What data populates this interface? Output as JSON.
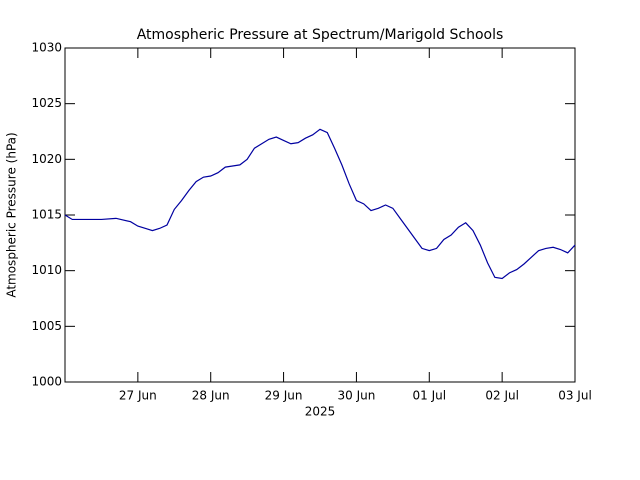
{
  "chart_data": {
    "type": "line",
    "title": "Atmospheric Pressure at Spectrum/Marigold Schools",
    "ylabel": "Atmospheric Pressure (hPa)",
    "xlabel": "2025",
    "x": [
      26.0,
      26.1,
      26.25,
      26.5,
      26.7,
      26.9,
      27.0,
      27.1,
      27.2,
      27.3,
      27.4,
      27.5,
      27.6,
      27.7,
      27.8,
      27.9,
      28.0,
      28.1,
      28.2,
      28.3,
      28.4,
      28.5,
      28.6,
      28.7,
      28.8,
      28.9,
      29.0,
      29.1,
      29.2,
      29.3,
      29.4,
      29.5,
      29.6,
      29.7,
      29.8,
      29.9,
      30.0,
      30.1,
      30.2,
      30.3,
      30.4,
      30.5,
      30.6,
      30.7,
      30.8,
      30.9,
      31.0,
      31.1,
      31.2,
      31.3,
      31.4,
      31.5,
      31.6,
      31.7,
      31.8,
      31.9,
      32.0,
      32.1,
      32.2,
      32.3,
      32.4,
      32.5,
      32.6,
      32.7,
      32.8,
      32.9,
      33.0
    ],
    "series": [
      {
        "name": "Pressure",
        "color": "#0000a0",
        "values": [
          1015.0,
          1014.6,
          1014.6,
          1014.6,
          1014.7,
          1014.4,
          1014.0,
          1013.8,
          1013.6,
          1013.8,
          1014.1,
          1015.5,
          1016.3,
          1017.2,
          1018.0,
          1018.4,
          1018.5,
          1018.8,
          1019.3,
          1019.4,
          1019.5,
          1020.0,
          1021.0,
          1021.4,
          1021.8,
          1022.0,
          1021.7,
          1021.4,
          1021.5,
          1021.9,
          1022.2,
          1022.7,
          1022.4,
          1021.0,
          1019.5,
          1017.8,
          1016.3,
          1016.0,
          1015.4,
          1015.6,
          1015.9,
          1015.6,
          1014.7,
          1013.8,
          1012.9,
          1012.0,
          1011.8,
          1012.0,
          1012.8,
          1013.2,
          1013.9,
          1014.3,
          1013.6,
          1012.3,
          1010.7,
          1009.4,
          1009.3,
          1009.8,
          1010.1,
          1010.6,
          1011.2,
          1011.8,
          1012.0,
          1012.1,
          1011.9,
          1011.6,
          1012.3
        ]
      }
    ],
    "xlim": [
      26,
      33
    ],
    "xticks": [
      {
        "value": 27,
        "label": "27 Jun"
      },
      {
        "value": 28,
        "label": "28 Jun"
      },
      {
        "value": 29,
        "label": "29 Jun"
      },
      {
        "value": 30,
        "label": "30 Jun"
      },
      {
        "value": 31,
        "label": "01 Jul"
      },
      {
        "value": 32,
        "label": "02 Jul"
      },
      {
        "value": 33,
        "label": "03 Jul"
      }
    ],
    "ylim": [
      1000,
      1030
    ],
    "yticks": [
      1000,
      1005,
      1010,
      1015,
      1020,
      1025,
      1030
    ]
  }
}
